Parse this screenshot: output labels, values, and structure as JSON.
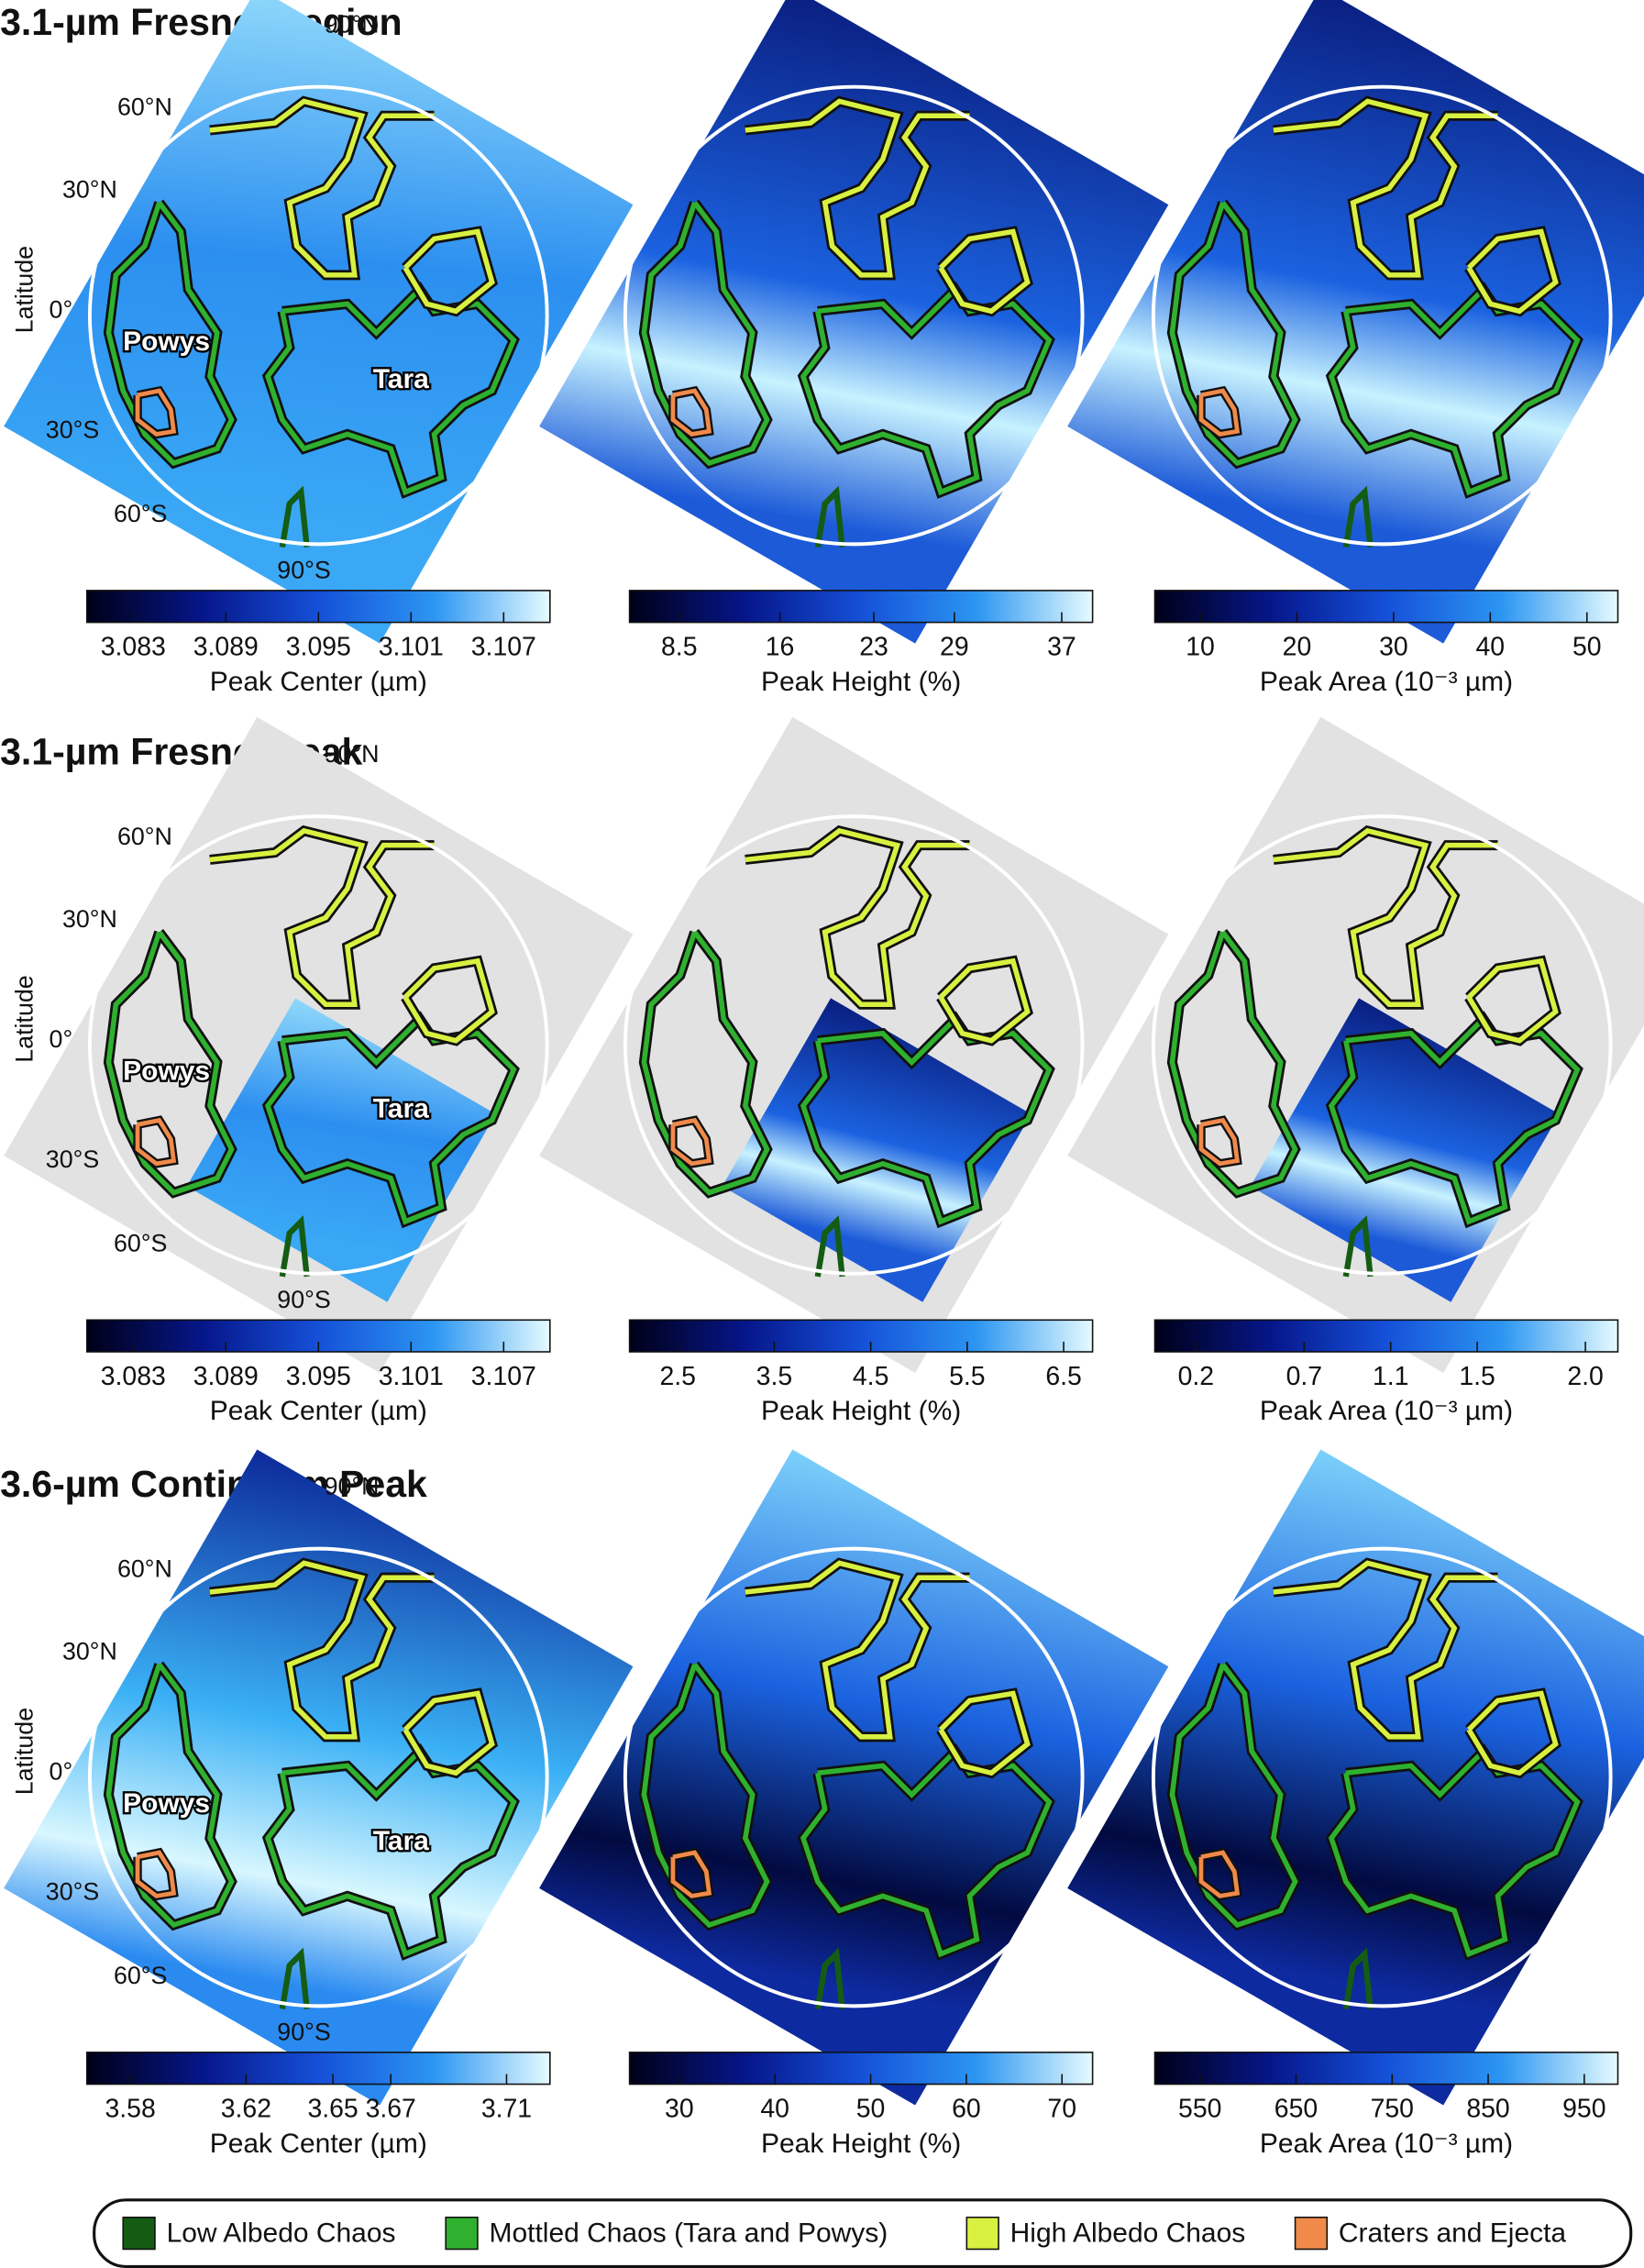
{
  "colormap": [
    "#000018",
    "#06168a",
    "#1550d8",
    "#2c96f2",
    "#e6fbff"
  ],
  "map_labels": {
    "axis_label": "Latitude",
    "latitudes": [
      "90°N",
      "60°N",
      "30°N",
      "0°",
      "30°S",
      "60°S",
      "90°S"
    ],
    "regions": [
      "Powys",
      "Tara"
    ]
  },
  "sections": [
    {
      "title": "3.1-µm Fresnel Region",
      "panels": [
        {
          "colorbar": {
            "label": "Peak Center (µm)",
            "lim": [
              3.08,
              3.11
            ],
            "ticks": [
              3.083,
              3.089,
              3.095,
              3.101,
              3.107
            ]
          }
        },
        {
          "colorbar": {
            "label": "Peak Height (%)",
            "lim": [
              4.8,
              39.3
            ],
            "ticks": [
              8.5,
              16,
              23,
              29,
              37
            ]
          }
        },
        {
          "colorbar": {
            "label": "Peak Area (10⁻³ µm)",
            "lim": [
              5.3,
              53.2
            ],
            "ticks": [
              10,
              20,
              30,
              40,
              50
            ]
          }
        }
      ]
    },
    {
      "title": "3.1-µm Fresnel Peak",
      "panels": [
        {
          "colorbar": {
            "label": "Peak Center (µm)",
            "lim": [
              3.08,
              3.11
            ],
            "ticks": [
              3.083,
              3.089,
              3.095,
              3.101,
              3.107
            ]
          }
        },
        {
          "colorbar": {
            "label": "Peak Height (%)",
            "lim": [
              2.0,
              6.8
            ],
            "ticks": [
              2.5,
              3.5,
              4.5,
              5.5,
              6.5
            ]
          }
        },
        {
          "colorbar": {
            "label": "Peak Area (10⁻³ µm)",
            "lim": [
              0.01,
              2.15
            ],
            "ticks": [
              0.2,
              0.7,
              1.1,
              1.5,
              {
                "value": 2.0,
                "label": "2.0"
              }
            ]
          }
        }
      ]
    },
    {
      "title": "3.6-µm Continuum Peak",
      "panels": [
        {
          "colorbar": {
            "label": "Peak Center (µm)",
            "lim": [
              3.565,
              3.725
            ],
            "ticks": [
              3.58,
              3.62,
              3.65,
              3.67,
              3.71
            ]
          }
        },
        {
          "colorbar": {
            "label": "Peak Height (%)",
            "lim": [
              24.8,
              73.2
            ],
            "ticks": [
              30,
              40,
              50,
              60,
              70
            ]
          }
        },
        {
          "colorbar": {
            "label": "Peak Area (10⁻³ µm)",
            "lim": [
              503,
              985
            ],
            "ticks": [
              550,
              650,
              750,
              850,
              950
            ]
          }
        }
      ]
    }
  ],
  "legend": [
    {
      "label": "Low Albedo Chaos",
      "color": "#145c14"
    },
    {
      "label": "Mottled Chaos (Tara and Powys)",
      "color": "#2fb02f"
    },
    {
      "label": "High Albedo Chaos",
      "color": "#d8f040"
    },
    {
      "label": "Craters and Ejecta",
      "color": "#f08a4a"
    }
  ]
}
